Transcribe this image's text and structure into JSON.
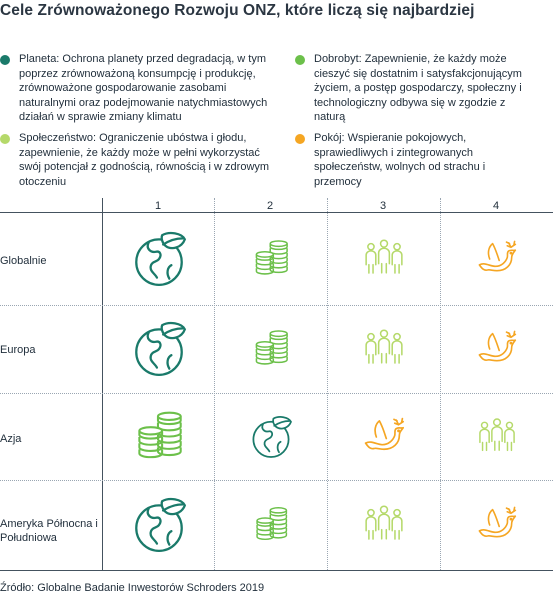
{
  "title": "Cele Zrównoważonego Rozwoju ONZ, które liczą się najbardziej",
  "legend": [
    {
      "key": "planet",
      "color": "#1a7a6a",
      "text": "Planeta: Ochrona planety przed degradacją, w tym poprzez zrównoważoną konsumpcję i produkcję, zrównoważone gospodarowanie zasobami naturalnymi oraz podejmowanie natychmiastowych działań w sprawie zmiany klimatu"
    },
    {
      "key": "prosperity",
      "color": "#6cc04a",
      "text": "Dobrobyt: Zapewnienie, że każdy może cieszyć się dostatnim i satysfakcjonującym życiem, a postęp gospodarczy, społeczny i technologiczny odbywa się w zgodzie z naturą"
    },
    {
      "key": "people",
      "color": "#b5d96a",
      "text": "Społeczeństwo: Ograniczenie ubóstwa i głodu, zapewnienie, że każdy może w pełni wykorzystać swój potencjał z godnością, równością i w zdrowym otoczeniu"
    },
    {
      "key": "peace",
      "color": "#f5a623",
      "text": "Pokój: Wspieranie pokojowych, sprawiedliwych i zintegrowanych społeczeństw, wolnych od strachu i przemocy"
    }
  ],
  "columns": [
    "1",
    "2",
    "3",
    "4"
  ],
  "rows": [
    {
      "label": "Globalnie",
      "cells": [
        "planet",
        "prosperity",
        "people",
        "peace"
      ]
    },
    {
      "label": "Europa",
      "cells": [
        "planet",
        "prosperity",
        "people",
        "peace"
      ]
    },
    {
      "label": "Azja",
      "cells": [
        "prosperity",
        "planet",
        "peace",
        "people"
      ]
    },
    {
      "label": "Ameryka Północna i Południowa",
      "cells": [
        "planet",
        "prosperity",
        "people",
        "peace"
      ]
    }
  ],
  "icons": {
    "planet": "globe-leaf-icon",
    "prosperity": "coins-icon",
    "people": "people-icon",
    "peace": "dove-icon"
  },
  "source": "Źródło: Globalne Badanie Inwestorów Schroders 2019"
}
